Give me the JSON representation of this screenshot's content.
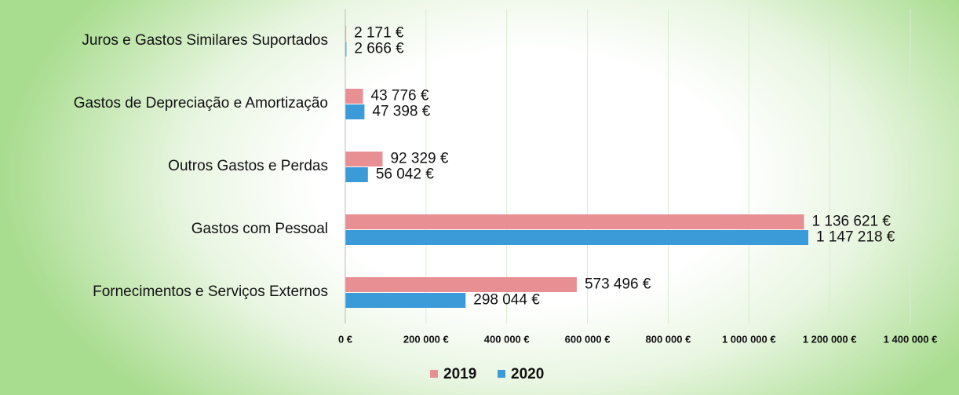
{
  "chart_data": {
    "type": "bar",
    "orientation": "horizontal",
    "categories": [
      "Juros e Gastos Similares Suportados",
      "Gastos de Depreciação e Amortização",
      "Outros Gastos e Perdas",
      "Gastos com Pessoal",
      "Fornecimentos e Serviços Externos"
    ],
    "series": [
      {
        "name": "2019",
        "color": "#e88f94",
        "values": [
          2171,
          43776,
          92329,
          1136621,
          573496
        ],
        "value_labels": [
          "2 171 €",
          "43 776 €",
          "92 329 €",
          "1 136 621 €",
          "573 496 €"
        ]
      },
      {
        "name": "2020",
        "color": "#3b9ad8",
        "values": [
          2666,
          47398,
          56042,
          1147218,
          298044
        ],
        "value_labels": [
          "2 666 €",
          "47 398 €",
          "56 042 €",
          "1 147 218 €",
          "298 044 €"
        ]
      }
    ],
    "xlim": [
      0,
      1400000
    ],
    "xticks": [
      {
        "value": 0,
        "label": "0 €"
      },
      {
        "value": 200000,
        "label": "200 000 €"
      },
      {
        "value": 400000,
        "label": "400 000 €"
      },
      {
        "value": 600000,
        "label": "600 000 €"
      },
      {
        "value": 800000,
        "label": "800 000 €"
      },
      {
        "value": 1000000,
        "label": "1 000 000 €"
      },
      {
        "value": 1200000,
        "label": "1 200 000 €"
      },
      {
        "value": 1400000,
        "label": "1 400 000 €"
      }
    ],
    "legend": "bottom"
  }
}
